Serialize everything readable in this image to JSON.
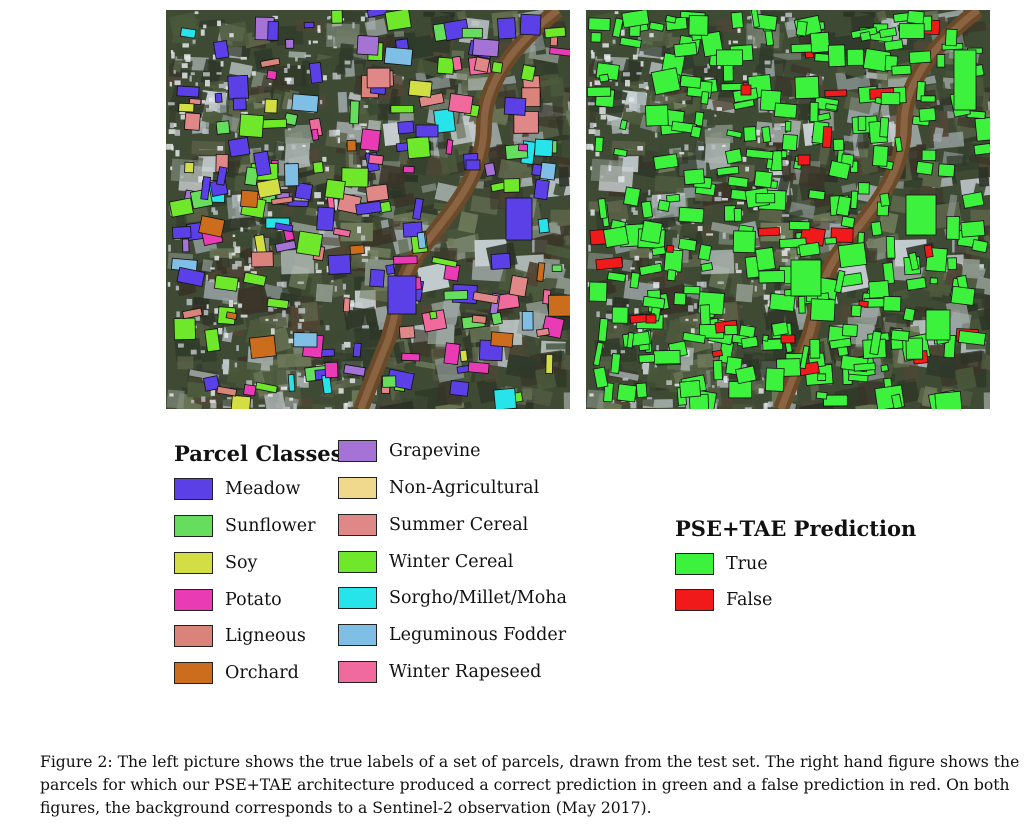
{
  "legend_classes": {
    "title": "Parcel Classes",
    "items": [
      {
        "label": "Meadow",
        "color": "#5a40e6"
      },
      {
        "label": "Sunflower",
        "color": "#66dd5c"
      },
      {
        "label": "Soy",
        "color": "#d3dd44"
      },
      {
        "label": "Potato",
        "color": "#e83bb4"
      },
      {
        "label": "Ligneous",
        "color": "#d9837a"
      },
      {
        "label": "Orchard",
        "color": "#cc6d1e"
      },
      {
        "label": "Grapevine",
        "color": "#a573d6"
      },
      {
        "label": "Non-Agricultural",
        "color": "#f0d98c"
      },
      {
        "label": "Summer Cereal",
        "color": "#e08787"
      },
      {
        "label": "Winter Cereal",
        "color": "#6fe82c"
      },
      {
        "label": "Sorgho/Millet/Moha",
        "color": "#27e4ea"
      },
      {
        "label": "Leguminous Fodder",
        "color": "#7fbfe6"
      },
      {
        "label": "Winter Rapeseed",
        "color": "#f06a9e"
      }
    ]
  },
  "legend_prediction": {
    "title": "PSE+TAE Prediction",
    "items": [
      {
        "label": "True",
        "color": "#3cf23c"
      },
      {
        "label": "False",
        "color": "#f01a1a"
      }
    ]
  },
  "caption": {
    "lines": [
      "Figure 2: The left picture shows the true labels of a set of parcels, drawn from the test set. The right hand figure shows the",
      "parcels for which our PSE+TAE architecture produced a correct prediction in green and a false prediction in red. On both",
      "figures, the background corresponds to a Sentinel-2 observation (May 2017)."
    ]
  }
}
